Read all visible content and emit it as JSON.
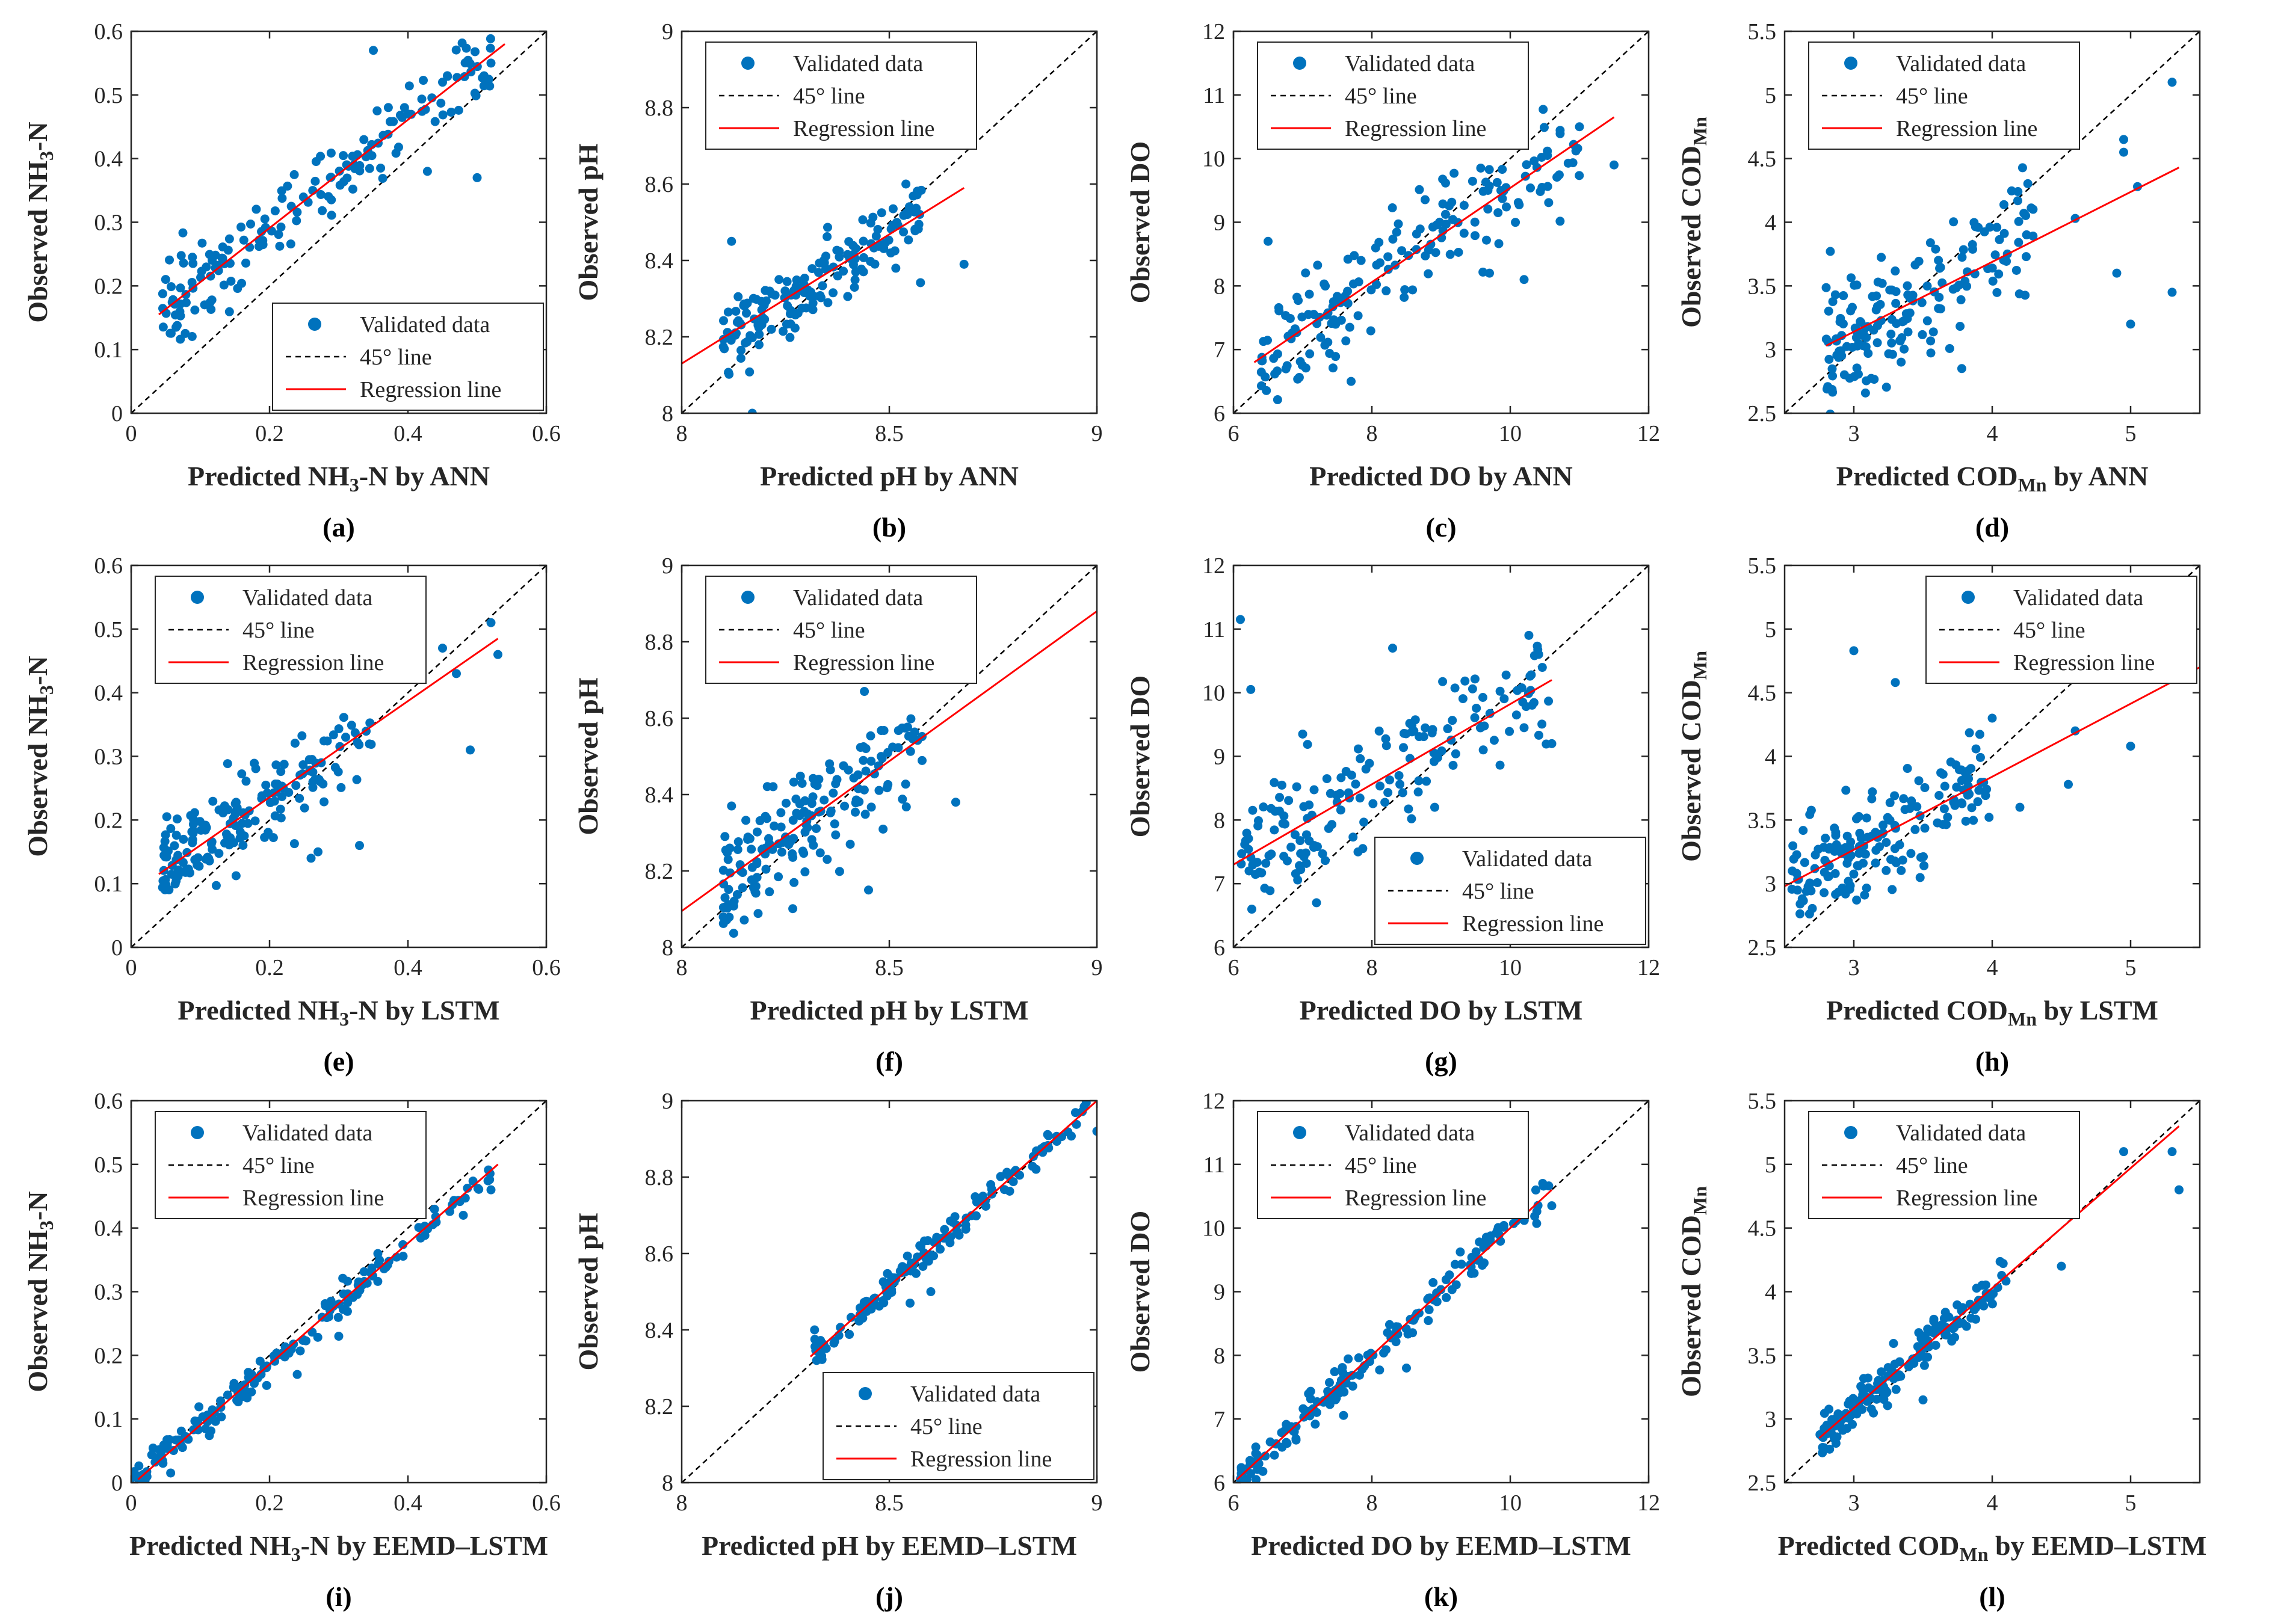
{
  "figure": {
    "colors": {
      "point": "#0072BD",
      "regression": "#FF0000",
      "identity": "#000000",
      "axis": "#262626"
    }
  },
  "legend": {
    "items": [
      "Validated data",
      "45° line",
      "Regression line"
    ]
  },
  "chart_data": [
    {
      "id": "a",
      "panel_label": "(a)",
      "type": "scatter",
      "row": 0,
      "col": 0,
      "xlim": [
        0,
        0.6
      ],
      "ylim": [
        0,
        0.6
      ],
      "xticks": [
        0,
        0.2,
        0.4,
        0.6
      ],
      "yticks": [
        0,
        0.1,
        0.2,
        0.3,
        0.4,
        0.5,
        0.6
      ],
      "xlabel": {
        "main": "Predicted NH",
        "sub": "3",
        "rest": "-N by ANN"
      },
      "ylabel": {
        "main": "Observed NH",
        "sub": "3",
        "rest": "-N"
      },
      "legend_pos": "bottom-right",
      "regression": {
        "x": [
          0.04,
          0.54
        ],
        "y": [
          0.155,
          0.58
        ]
      },
      "n_points": 170,
      "base": {
        "xmin": 0.045,
        "xmax": 0.52
      },
      "noise": 0.03,
      "outliers": [
        [
          0.35,
          0.57
        ],
        [
          0.5,
          0.37
        ],
        [
          0.52,
          0.55
        ],
        [
          0.45,
          0.52
        ],
        [
          0.4,
          0.47
        ]
      ]
    },
    {
      "id": "b",
      "panel_label": "(b)",
      "type": "scatter",
      "row": 0,
      "col": 1,
      "xlim": [
        8,
        9
      ],
      "ylim": [
        8,
        9
      ],
      "xticks": [
        8,
        8.5,
        9
      ],
      "yticks": [
        8,
        8.2,
        8.4,
        8.6,
        8.8,
        9
      ],
      "xlabel": {
        "main": "Predicted pH by ANN",
        "sub": "",
        "rest": ""
      },
      "ylabel": {
        "main": "Observed pH",
        "sub": "",
        "rest": ""
      },
      "legend_pos": "top-left",
      "regression": {
        "x": [
          8,
          8.68
        ],
        "y": [
          8.13,
          8.59
        ]
      },
      "n_points": 170,
      "base": {
        "xmin": 8.1,
        "xmax": 8.58
      },
      "noise": 0.05,
      "outliers": [
        [
          8.17,
          8.0
        ],
        [
          8.12,
          8.45
        ],
        [
          8.68,
          8.39
        ],
        [
          8.54,
          8.6
        ]
      ]
    },
    {
      "id": "c",
      "panel_label": "(c)",
      "type": "scatter",
      "row": 0,
      "col": 2,
      "xlim": [
        6,
        12
      ],
      "ylim": [
        6,
        12
      ],
      "xticks": [
        6,
        8,
        10,
        12
      ],
      "yticks": [
        6,
        7,
        8,
        9,
        10,
        11,
        12
      ],
      "xlabel": {
        "main": "Predicted DO by ANN",
        "sub": "",
        "rest": ""
      },
      "ylabel": {
        "main": "Observed DO",
        "sub": "",
        "rest": ""
      },
      "legend_pos": "top-left",
      "regression": {
        "x": [
          6.3,
          11.5
        ],
        "y": [
          6.8,
          10.65
        ]
      },
      "n_points": 170,
      "base": {
        "xmin": 6.4,
        "xmax": 11.0
      },
      "noise": 0.45,
      "outliers": [
        [
          6.5,
          8.7
        ],
        [
          7.7,
          6.5
        ],
        [
          11.0,
          10.5
        ],
        [
          11.5,
          9.9
        ],
        [
          10.2,
          8.1
        ],
        [
          9.7,
          8.2
        ]
      ]
    },
    {
      "id": "d",
      "panel_label": "(d)",
      "type": "scatter",
      "row": 0,
      "col": 3,
      "xlim": [
        2.5,
        5.5
      ],
      "ylim": [
        2.5,
        5.5
      ],
      "xticks": [
        3,
        4,
        5
      ],
      "yticks": [
        2.5,
        3,
        3.5,
        4,
        4.5,
        5,
        5.5
      ],
      "xlabel": {
        "main": "Predicted COD",
        "sub": "Mn",
        "rest": " by ANN"
      },
      "ylabel": {
        "main": "Observed COD",
        "sub": "Mn",
        "rest": ""
      },
      "legend_pos": "top-left",
      "regression": {
        "x": [
          2.8,
          5.35
        ],
        "y": [
          3.03,
          4.43
        ]
      },
      "n_points": 170,
      "base": {
        "xmin": 2.8,
        "xmax": 4.3
      },
      "noise": 0.28,
      "outliers": [
        [
          5.3,
          5.1
        ],
        [
          4.95,
          4.65
        ],
        [
          4.95,
          4.55
        ],
        [
          5.0,
          3.2
        ],
        [
          5.3,
          3.45
        ],
        [
          4.9,
          3.6
        ],
        [
          4.6,
          4.03
        ],
        [
          5.05,
          4.28
        ]
      ]
    },
    {
      "id": "e",
      "panel_label": "(e)",
      "type": "scatter",
      "row": 1,
      "col": 0,
      "xlim": [
        0,
        0.6
      ],
      "ylim": [
        0,
        0.6
      ],
      "xticks": [
        0,
        0.2,
        0.4,
        0.6
      ],
      "yticks": [
        0,
        0.1,
        0.2,
        0.3,
        0.4,
        0.5,
        0.6
      ],
      "xlabel": {
        "main": "Predicted NH",
        "sub": "3",
        "rest": "-N by LSTM"
      },
      "ylabel": {
        "main": "Observed NH",
        "sub": "3",
        "rest": "-N"
      },
      "legend_pos": "top-left",
      "regression": {
        "x": [
          0.04,
          0.53
        ],
        "y": [
          0.115,
          0.485
        ]
      },
      "n_points": 170,
      "base": {
        "xmin": 0.045,
        "xmax": 0.35
      },
      "noise": 0.03,
      "outliers": [
        [
          0.26,
          0.14
        ],
        [
          0.27,
          0.15
        ],
        [
          0.33,
          0.16
        ],
        [
          0.49,
          0.31
        ],
        [
          0.47,
          0.43
        ],
        [
          0.45,
          0.47
        ],
        [
          0.53,
          0.46
        ],
        [
          0.52,
          0.51
        ]
      ]
    },
    {
      "id": "f",
      "panel_label": "(f)",
      "type": "scatter",
      "row": 1,
      "col": 1,
      "xlim": [
        8,
        9
      ],
      "ylim": [
        8,
        9
      ],
      "xticks": [
        8,
        8.5,
        9
      ],
      "yticks": [
        8,
        8.2,
        8.4,
        8.6,
        8.8,
        9
      ],
      "xlabel": {
        "main": "Predicted pH by LSTM",
        "sub": "",
        "rest": ""
      },
      "ylabel": {
        "main": "Observed pH",
        "sub": "",
        "rest": ""
      },
      "legend_pos": "top-left",
      "regression": {
        "x": [
          8,
          9
        ],
        "y": [
          8.095,
          8.88
        ]
      },
      "n_points": 170,
      "base": {
        "xmin": 8.1,
        "xmax": 8.58
      },
      "noise": 0.07,
      "outliers": [
        [
          8.1,
          8.08
        ],
        [
          8.45,
          8.15
        ],
        [
          8.66,
          8.38
        ],
        [
          8.44,
          8.67
        ],
        [
          8.12,
          8.37
        ]
      ]
    },
    {
      "id": "g",
      "panel_label": "(g)",
      "type": "scatter",
      "row": 1,
      "col": 2,
      "xlim": [
        6,
        12
      ],
      "ylim": [
        6,
        12
      ],
      "xticks": [
        6,
        8,
        10,
        12
      ],
      "yticks": [
        6,
        7,
        8,
        9,
        10,
        11,
        12
      ],
      "xlabel": {
        "main": "Predicted DO by LSTM",
        "sub": "",
        "rest": ""
      },
      "ylabel": {
        "main": "Observed DO",
        "sub": "",
        "rest": ""
      },
      "legend_pos": "bottom-right",
      "regression": {
        "x": [
          6,
          10.6
        ],
        "y": [
          7.3,
          10.2
        ]
      },
      "n_points": 170,
      "base": {
        "xmin": 6.1,
        "xmax": 10.6
      },
      "noise": 0.5,
      "outliers": [
        [
          6.1,
          11.15
        ],
        [
          6.25,
          10.05
        ],
        [
          8.3,
          10.7
        ],
        [
          7.2,
          6.7
        ],
        [
          10.6,
          9.2
        ],
        [
          7.0,
          9.35
        ]
      ]
    },
    {
      "id": "h",
      "panel_label": "(h)",
      "type": "scatter",
      "row": 1,
      "col": 3,
      "xlim": [
        2.5,
        5.5
      ],
      "ylim": [
        2.5,
        5.5
      ],
      "xticks": [
        3,
        4,
        5
      ],
      "yticks": [
        2.5,
        3,
        3.5,
        4,
        4.5,
        5,
        5.5
      ],
      "xlabel": {
        "main": "Predicted COD",
        "sub": "Mn",
        "rest": " by LSTM"
      },
      "ylabel": {
        "main": "Observed COD",
        "sub": "Mn",
        "rest": ""
      },
      "legend_pos": "top-right",
      "regression": {
        "x": [
          2.5,
          5.5
        ],
        "y": [
          2.98,
          4.7
        ]
      },
      "n_points": 170,
      "base": {
        "xmin": 2.55,
        "xmax": 4.0
      },
      "noise": 0.22,
      "outliers": [
        [
          3.0,
          4.83
        ],
        [
          3.3,
          4.58
        ],
        [
          4.6,
          4.2
        ],
        [
          5.0,
          4.08
        ],
        [
          4.55,
          3.78
        ],
        [
          4.0,
          4.3
        ],
        [
          4.2,
          3.6
        ]
      ]
    },
    {
      "id": "i",
      "panel_label": "(i)",
      "type": "scatter",
      "row": 2,
      "col": 0,
      "xlim": [
        0,
        0.6
      ],
      "ylim": [
        0,
        0.6
      ],
      "xticks": [
        0,
        0.2,
        0.4,
        0.6
      ],
      "yticks": [
        0,
        0.1,
        0.2,
        0.3,
        0.4,
        0.5,
        0.6
      ],
      "xlabel": {
        "main": "Predicted NH",
        "sub": "3",
        "rest": "-N by EEMD–LSTM"
      },
      "ylabel": {
        "main": "Observed NH",
        "sub": "3",
        "rest": "-N"
      },
      "legend_pos": "top-left",
      "regression": {
        "x": [
          0.01,
          0.53
        ],
        "y": [
          0.005,
          0.5
        ]
      },
      "n_points": 170,
      "base": {
        "xmin": 0.0,
        "xmax": 0.53
      },
      "noise": 0.012,
      "outliers": [
        [
          0.24,
          0.17
        ],
        [
          0.3,
          0.23
        ],
        [
          0.48,
          0.42
        ],
        [
          0.52,
          0.46
        ]
      ]
    },
    {
      "id": "j",
      "panel_label": "(j)",
      "type": "scatter",
      "row": 2,
      "col": 1,
      "xlim": [
        8,
        9
      ],
      "ylim": [
        8,
        9
      ],
      "xticks": [
        8,
        8.5,
        9
      ],
      "yticks": [
        8,
        8.2,
        8.4,
        8.6,
        8.8,
        9
      ],
      "xlabel": {
        "main": "Predicted pH by EEMD–LSTM",
        "sub": "",
        "rest": ""
      },
      "ylabel": {
        "main": "Observed pH",
        "sub": "",
        "rest": ""
      },
      "legend_pos": "bottom-right",
      "regression": {
        "x": [
          8.31,
          9.0
        ],
        "y": [
          8.33,
          9.0
        ]
      },
      "n_points": 150,
      "base": {
        "xmin": 8.32,
        "xmax": 9.0
      },
      "noise": 0.018,
      "outliers": [
        [
          8.32,
          8.4
        ],
        [
          8.6,
          8.5
        ],
        [
          8.55,
          8.47
        ],
        [
          9.0,
          8.92
        ]
      ]
    },
    {
      "id": "k",
      "panel_label": "(k)",
      "type": "scatter",
      "row": 2,
      "col": 2,
      "xlim": [
        6,
        12
      ],
      "ylim": [
        6,
        12
      ],
      "xticks": [
        6,
        8,
        10,
        12
      ],
      "yticks": [
        6,
        7,
        8,
        9,
        10,
        11,
        12
      ],
      "xlabel": {
        "main": "Predicted DO by EEMD–LSTM",
        "sub": "",
        "rest": ""
      },
      "ylabel": {
        "main": "Observed DO",
        "sub": "",
        "rest": ""
      },
      "legend_pos": "top-left",
      "regression": {
        "x": [
          6.05,
          10.6
        ],
        "y": [
          6.05,
          10.6
        ]
      },
      "n_points": 170,
      "base": {
        "xmin": 6.1,
        "xmax": 10.6
      },
      "noise": 0.15,
      "outliers": [
        [
          8.6,
          8.55
        ],
        [
          10.6,
          10.35
        ],
        [
          8.5,
          7.8
        ]
      ]
    },
    {
      "id": "l",
      "panel_label": "(l)",
      "type": "scatter",
      "row": 2,
      "col": 3,
      "xlim": [
        2.5,
        5.5
      ],
      "ylim": [
        2.5,
        5.5
      ],
      "xticks": [
        3,
        4,
        5
      ],
      "yticks": [
        2.5,
        3,
        3.5,
        4,
        4.5,
        5,
        5.5
      ],
      "xlabel": {
        "main": "Predicted COD",
        "sub": "Mn",
        "rest": " by EEMD–LSTM"
      },
      "ylabel": {
        "main": "Observed COD",
        "sub": "Mn",
        "rest": ""
      },
      "legend_pos": "top-left",
      "regression": {
        "x": [
          2.75,
          5.35
        ],
        "y": [
          2.85,
          5.3
        ]
      },
      "n_points": 170,
      "base": {
        "xmin": 2.75,
        "xmax": 4.1
      },
      "noise": 0.08,
      "outliers": [
        [
          5.3,
          5.1
        ],
        [
          5.35,
          4.8
        ],
        [
          4.95,
          5.1
        ],
        [
          4.6,
          4.75
        ],
        [
          3.5,
          3.15
        ],
        [
          4.5,
          4.2
        ]
      ]
    }
  ]
}
